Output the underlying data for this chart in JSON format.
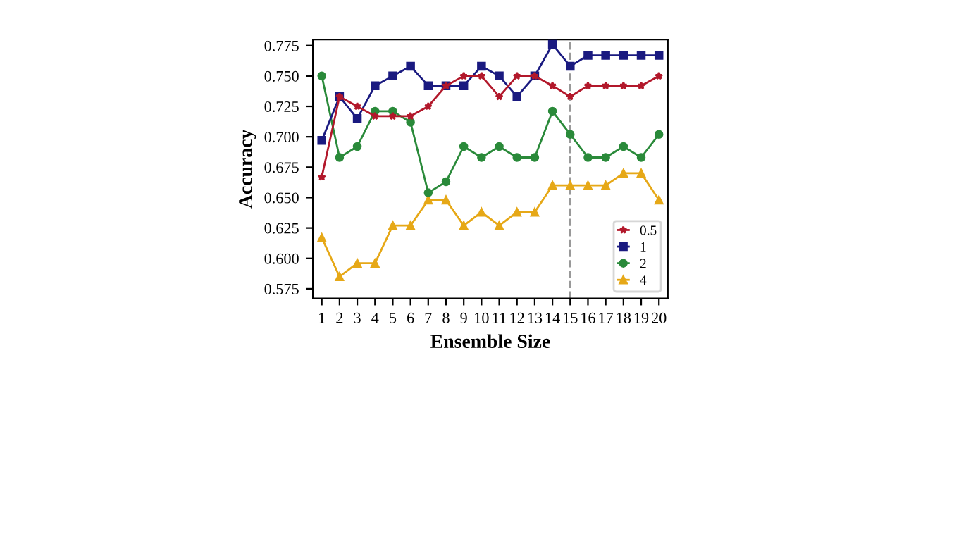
{
  "chart_data": {
    "type": "line",
    "xlabel": "Ensemble Size",
    "ylabel": "Accuracy",
    "x": [
      1,
      2,
      3,
      4,
      5,
      6,
      7,
      8,
      9,
      10,
      11,
      12,
      13,
      14,
      15,
      16,
      17,
      18,
      19,
      20
    ],
    "series": [
      {
        "name": "0.5",
        "color": "#b2182b",
        "marker": "star",
        "values": [
          0.667,
          0.733,
          0.725,
          0.717,
          0.717,
          0.717,
          0.725,
          0.742,
          0.75,
          0.75,
          0.733,
          0.75,
          0.75,
          0.742,
          0.733,
          0.742,
          0.742,
          0.742,
          0.742,
          0.75
        ]
      },
      {
        "name": "1",
        "color": "#1a1a80",
        "marker": "square",
        "values": [
          0.697,
          0.733,
          0.715,
          0.742,
          0.75,
          0.758,
          0.742,
          0.742,
          0.742,
          0.758,
          0.75,
          0.733,
          0.75,
          0.776,
          0.758,
          0.767,
          0.767,
          0.767,
          0.767,
          0.767
        ]
      },
      {
        "name": "2",
        "color": "#2a8a3a",
        "marker": "circle",
        "values": [
          0.75,
          0.683,
          0.692,
          0.721,
          0.721,
          0.712,
          0.654,
          0.663,
          0.692,
          0.683,
          0.692,
          0.683,
          0.683,
          0.721,
          0.702,
          0.683,
          0.683,
          0.692,
          0.683,
          0.702
        ]
      },
      {
        "name": "4",
        "color": "#e6a817",
        "marker": "triangle",
        "values": [
          0.617,
          0.585,
          0.596,
          0.596,
          0.627,
          0.627,
          0.648,
          0.648,
          0.627,
          0.638,
          0.627,
          0.638,
          0.638,
          0.66,
          0.66,
          0.66,
          0.66,
          0.67,
          0.67,
          0.648
        ]
      }
    ],
    "xlim": [
      0.5,
      20.5
    ],
    "xticks": [
      1,
      2,
      3,
      4,
      5,
      6,
      7,
      8,
      9,
      10,
      11,
      12,
      13,
      14,
      15,
      16,
      17,
      18,
      19,
      20
    ],
    "ylim": [
      0.567,
      0.78
    ],
    "yticks": [
      {
        "value": 0.575,
        "label": "0.575"
      },
      {
        "value": 0.6,
        "label": "0.600"
      },
      {
        "value": 0.625,
        "label": "0.625"
      },
      {
        "value": 0.65,
        "label": "0.650"
      },
      {
        "value": 0.675,
        "label": "0.675"
      },
      {
        "value": 0.7,
        "label": "0.700"
      },
      {
        "value": 0.725,
        "label": "0.725"
      },
      {
        "value": 0.75,
        "label": "0.750"
      },
      {
        "value": 0.775,
        "label": "0.775"
      }
    ],
    "ref_lines": [
      {
        "axis": "x",
        "value": 15,
        "label": null,
        "color": "#999999",
        "line_style": "dashed"
      }
    ],
    "grid": false,
    "legend": "bottom right",
    "line_style": "solid"
  }
}
